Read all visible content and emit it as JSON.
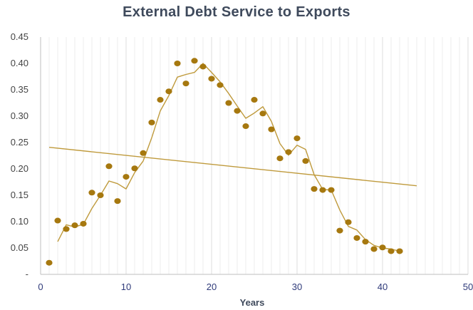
{
  "chart_data": {
    "type": "scatter",
    "title": "External Debt Service to Exports",
    "xlabel": "Years",
    "ylabel": "",
    "xlim": [
      0,
      50
    ],
    "ylim": [
      0,
      0.45
    ],
    "x_ticks": [
      0,
      10,
      20,
      30,
      40,
      50
    ],
    "y_ticks": [
      0,
      0.05,
      0.1,
      0.15,
      0.2,
      0.25,
      0.3,
      0.35,
      0.4,
      0.45
    ],
    "y_tick_labels": [
      "-",
      "0.05",
      "0.10",
      "0.15",
      "0.20",
      "0.25",
      "0.30",
      "0.35",
      "0.40",
      "0.45"
    ],
    "grid": "vertical-major-and-minor",
    "legend": "none",
    "colors": {
      "points": "#a6780f",
      "lines": "#bf9a3c",
      "grid": "#dcdcdc",
      "axis": "#bfbfbf"
    },
    "series": [
      {
        "type": "scatter",
        "x": [
          1,
          2,
          3,
          4,
          5,
          6,
          7,
          8,
          9,
          10,
          11,
          12,
          13,
          14,
          15,
          16,
          17,
          18,
          19,
          20,
          21,
          22,
          23,
          24,
          25,
          26,
          27,
          28,
          29,
          30,
          31,
          32,
          33,
          34,
          35,
          36,
          37,
          38,
          39,
          40,
          41,
          42
        ],
        "values": [
          0.022,
          0.102,
          0.086,
          0.093,
          0.096,
          0.155,
          0.15,
          0.205,
          0.139,
          0.185,
          0.201,
          0.23,
          0.288,
          0.331,
          0.347,
          0.4,
          0.362,
          0.405,
          0.394,
          0.371,
          0.359,
          0.325,
          0.31,
          0.281,
          0.331,
          0.305,
          0.275,
          0.22,
          0.232,
          0.258,
          0.215,
          0.162,
          0.16,
          0.16,
          0.083,
          0.099,
          0.069,
          0.062,
          0.048,
          0.051,
          0.044,
          0.044
        ]
      },
      {
        "type": "line",
        "x": [
          2,
          3,
          4,
          5,
          6,
          7,
          8,
          9,
          10,
          11,
          12,
          13,
          14,
          15,
          16,
          17,
          18,
          19,
          20,
          21,
          22,
          23,
          24,
          25,
          26,
          27,
          28,
          29,
          30,
          31,
          32,
          33,
          34,
          35,
          36,
          37,
          38,
          39,
          40,
          41,
          42
        ],
        "values": [
          0.062,
          0.094,
          0.09,
          0.095,
          0.125,
          0.15,
          0.177,
          0.172,
          0.162,
          0.193,
          0.215,
          0.259,
          0.31,
          0.339,
          0.374,
          0.379,
          0.383,
          0.4,
          0.383,
          0.365,
          0.343,
          0.319,
          0.296,
          0.306,
          0.318,
          0.29,
          0.248,
          0.226,
          0.245,
          0.237,
          0.189,
          0.161,
          0.16,
          0.122,
          0.091,
          0.084,
          0.066,
          0.055,
          0.05,
          0.048,
          0.044
        ]
      },
      {
        "type": "line",
        "x": [
          1,
          44
        ],
        "values": [
          0.241,
          0.168
        ]
      }
    ]
  }
}
